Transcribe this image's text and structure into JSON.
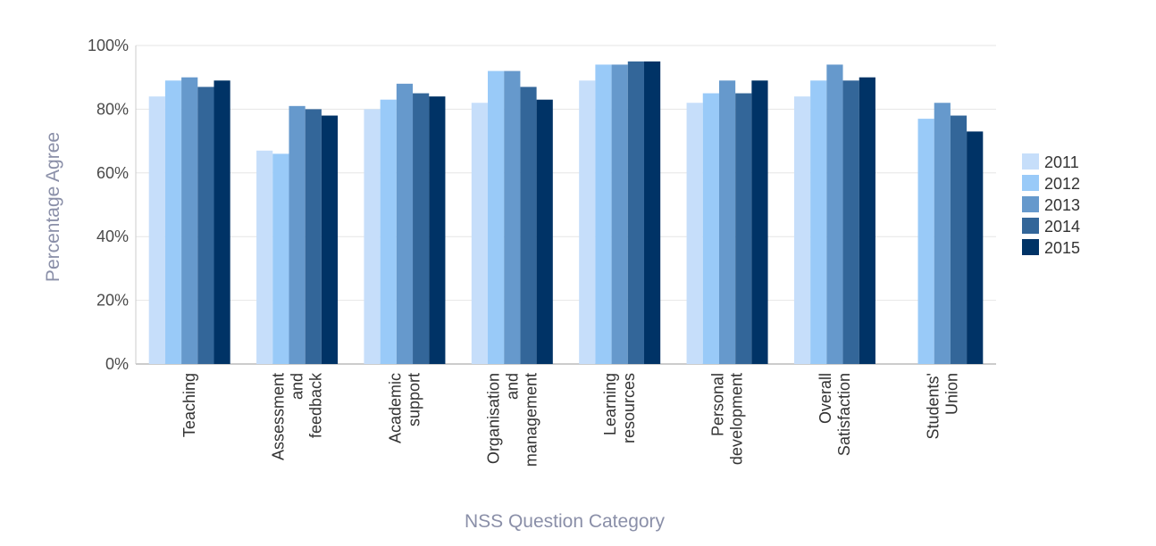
{
  "chart_data": {
    "type": "bar",
    "title": "",
    "xlabel": "NSS Question Category",
    "ylabel": "Percentage Agree",
    "ylim": [
      0,
      100
    ],
    "y_ticks": [
      "0%",
      "20%",
      "40%",
      "60%",
      "80%",
      "100%"
    ],
    "grid": true,
    "legend_position": "right",
    "categories": [
      [
        "Teaching"
      ],
      [
        "Assessment",
        "and",
        "feedback"
      ],
      [
        "Academic",
        "support"
      ],
      [
        "Organisation",
        "and",
        "management"
      ],
      [
        "Learning",
        "resources"
      ],
      [
        "Personal",
        "development"
      ],
      [
        "Overall",
        "Satisfaction"
      ],
      [
        "Students'",
        "Union"
      ]
    ],
    "series": [
      {
        "name": "2011",
        "color": "#c6defa",
        "values": [
          84,
          67,
          80,
          82,
          89,
          82,
          84,
          null
        ]
      },
      {
        "name": "2012",
        "color": "#99caf8",
        "values": [
          89,
          66,
          83,
          92,
          94,
          85,
          89,
          77
        ]
      },
      {
        "name": "2013",
        "color": "#6699cc",
        "values": [
          90,
          81,
          88,
          92,
          94,
          89,
          94,
          82
        ]
      },
      {
        "name": "2014",
        "color": "#336699",
        "values": [
          87,
          80,
          85,
          87,
          95,
          85,
          89,
          78
        ]
      },
      {
        "name": "2015",
        "color": "#003366",
        "values": [
          89,
          78,
          84,
          83,
          95,
          89,
          90,
          73
        ]
      }
    ]
  }
}
